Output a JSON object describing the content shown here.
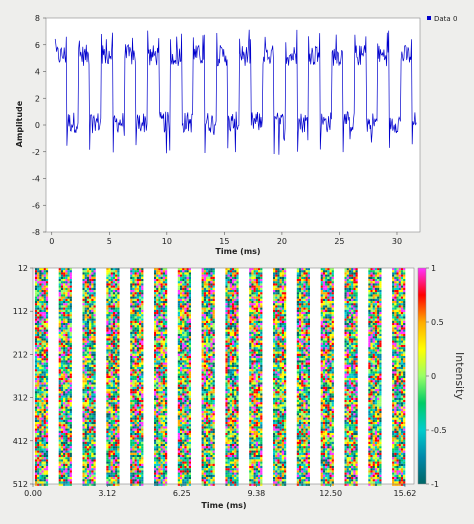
{
  "chart_data": [
    {
      "type": "line",
      "xlabel": "Time (ms)",
      "ylabel": "Amplitude",
      "xlim": [
        -0.5,
        32
      ],
      "ylim": [
        -8,
        8
      ],
      "xticks": [
        0,
        5,
        10,
        15,
        20,
        25,
        30
      ],
      "xtick_labels": [
        "0",
        "5",
        "10",
        "15",
        "20",
        "25",
        "30"
      ],
      "yticks": [
        -8,
        -6,
        -4,
        -2,
        0,
        2,
        4,
        6,
        8
      ],
      "ytick_labels": [
        "-8",
        "-6",
        "-4",
        "-2",
        "0",
        "2",
        "4",
        "6",
        "8"
      ],
      "grid": false,
      "legend": {
        "position": "top-right"
      },
      "series": [
        {
          "name": "Data 0",
          "color": "#0000cc",
          "pattern": {
            "high_level": 5.2,
            "low_level": 0.2,
            "peak_max": 7.2,
            "trough_min": -2.3,
            "period_ms": 2.0,
            "x_start": 0.3,
            "x_end": 31.7
          }
        }
      ]
    },
    {
      "type": "heatmap",
      "xlabel": "Time (ms)",
      "ylabel": "",
      "xlim": [
        0,
        16
      ],
      "ylim": [
        12,
        512
      ],
      "xticks": [
        0,
        3.12,
        6.25,
        9.38,
        12.5,
        15.62
      ],
      "xtick_labels": [
        "0.00",
        "3.12",
        "6.25",
        "9.38",
        "12.50",
        "15.62"
      ],
      "yticks": [
        12,
        112,
        212,
        312,
        412,
        512
      ],
      "ytick_labels": [
        "12",
        "112",
        "212",
        "312",
        "412",
        "512"
      ],
      "band_count": 16,
      "band_period_ms": 1.0,
      "band_fill_fraction": 0.5,
      "colorbar": {
        "label": "Intensity",
        "range": [
          -1,
          1
        ],
        "ticks": [
          1,
          0.5,
          0,
          -0.5,
          -1
        ],
        "tick_labels": [
          "1",
          "0.5",
          "0",
          "-0.5",
          "-1"
        ],
        "colors": [
          "#ff33ff",
          "#ff0000",
          "#ffaa00",
          "#ffff00",
          "#99ff66",
          "#00cc66",
          "#00cccc",
          "#0088aa",
          "#006666"
        ]
      }
    }
  ]
}
